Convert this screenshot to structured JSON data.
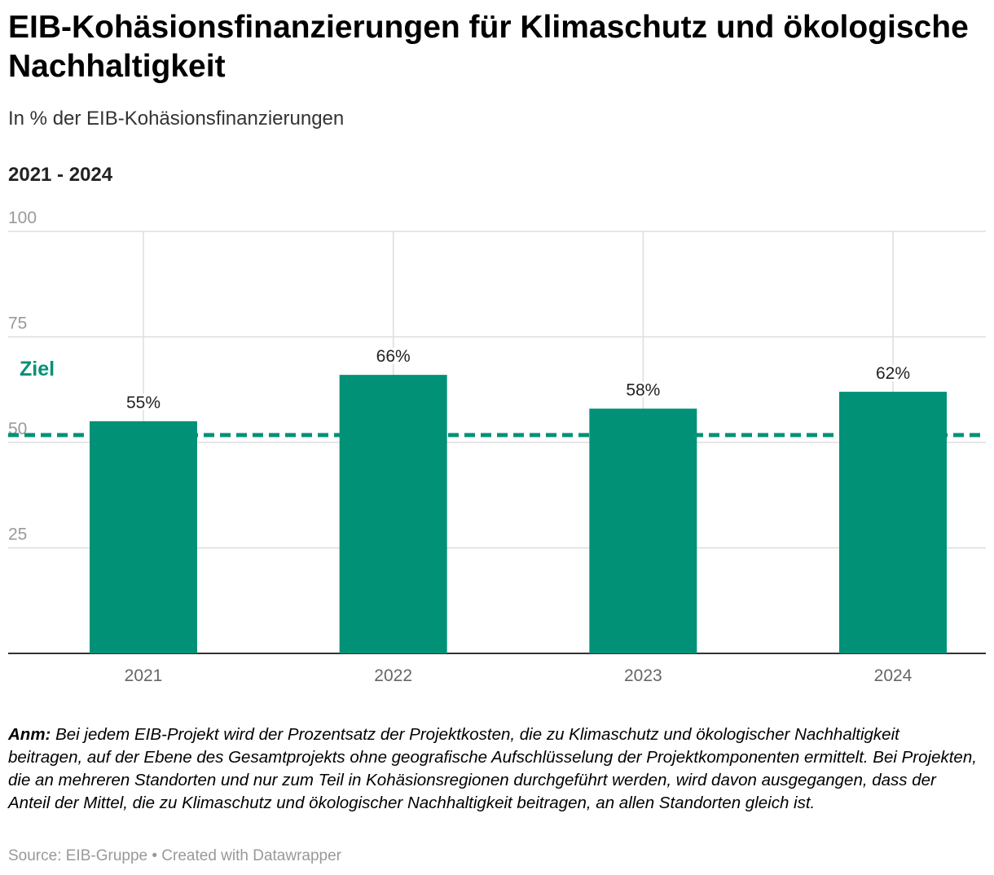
{
  "title": "EIB-Kohäsionsfinanzierungen für Klimaschutz und ökologische Nachhaltigkeit",
  "subtitle": "In % der EIB-Kohäsionsfinanzierungen",
  "range_label": "2021 - 2024",
  "colors": {
    "bar": "#009177",
    "target": "#009177",
    "grid": "#dddddd",
    "axis_text": "#999999",
    "baseline": "#333333"
  },
  "chart_data": {
    "type": "bar",
    "categories": [
      "2021",
      "2022",
      "2023",
      "2024"
    ],
    "values": [
      55,
      66,
      58,
      62
    ],
    "value_labels": [
      "55%",
      "66%",
      "58%",
      "62%"
    ],
    "y_ticks": [
      25,
      50,
      75,
      100
    ],
    "ylim": [
      0,
      100
    ],
    "target": {
      "label": "Ziel",
      "value": 50
    },
    "title": "EIB-Kohäsionsfinanzierungen für Klimaschutz und ökologische Nachhaltigkeit",
    "xlabel": "",
    "ylabel": "In % der EIB-Kohäsionsfinanzierungen"
  },
  "note": {
    "label": "Anm:",
    "text": "Bei jedem EIB-Projekt wird der Prozentsatz der Projektkosten, die zu Klimaschutz und ökologischer Nachhaltigkeit beitragen, auf der Ebene des Gesamtprojekts ohne geografische Aufschlüsselung der Projektkomponenten ermittelt. Bei Projekten, die an mehreren Standorten und nur zum Teil in Kohäsionsregionen durchgeführt werden, wird davon ausgegangen, dass der Anteil der Mittel, die zu Klimaschutz und ökologischer Nachhaltigkeit beitragen, an allen Standorten gleich ist."
  },
  "source": "Source: EIB-Gruppe • Created with Datawrapper"
}
